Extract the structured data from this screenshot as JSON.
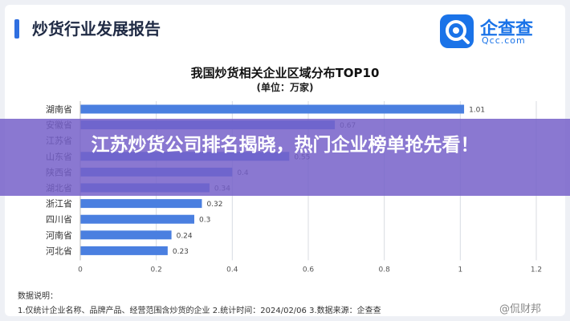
{
  "header": {
    "report_title": "炒货行业发展报告",
    "logo_text": "企查查",
    "logo_sub": "Qcc.com"
  },
  "banner": {
    "text": "江苏炒货公司排名揭晓，热门企业榜单抢先看！"
  },
  "notes": {
    "heading": "数据说明：",
    "body": "1.仅统计企业名称、品牌产品、经营范围含炒货的企业 2.统计时间：2024/02/06 3.数据来源：企查查"
  },
  "watermark": "@侃财邦",
  "colors": {
    "bar": "#4a7fe0",
    "label": "#333333",
    "grid": "#d8dbe2",
    "banner": "#7660c9"
  },
  "chart_data": {
    "type": "bar",
    "orientation": "horizontal",
    "title": "我国炒货相关企业区域分布TOP10",
    "subtitle": "(单位：万家)",
    "categories": [
      "湖南省",
      "安徽省",
      "江苏省",
      "山东省",
      "陕西省",
      "湖北省",
      "浙江省",
      "四川省",
      "河南省",
      "河北省"
    ],
    "values": [
      1.01,
      0.67,
      null,
      0.55,
      0.4,
      0.34,
      0.32,
      0.3,
      0.24,
      0.23
    ],
    "xlim": [
      0,
      1.2
    ],
    "xticks": [
      0,
      0.2,
      0.4,
      0.6,
      0.8,
      1,
      1.2
    ],
    "grid": true,
    "data_labels": true
  }
}
